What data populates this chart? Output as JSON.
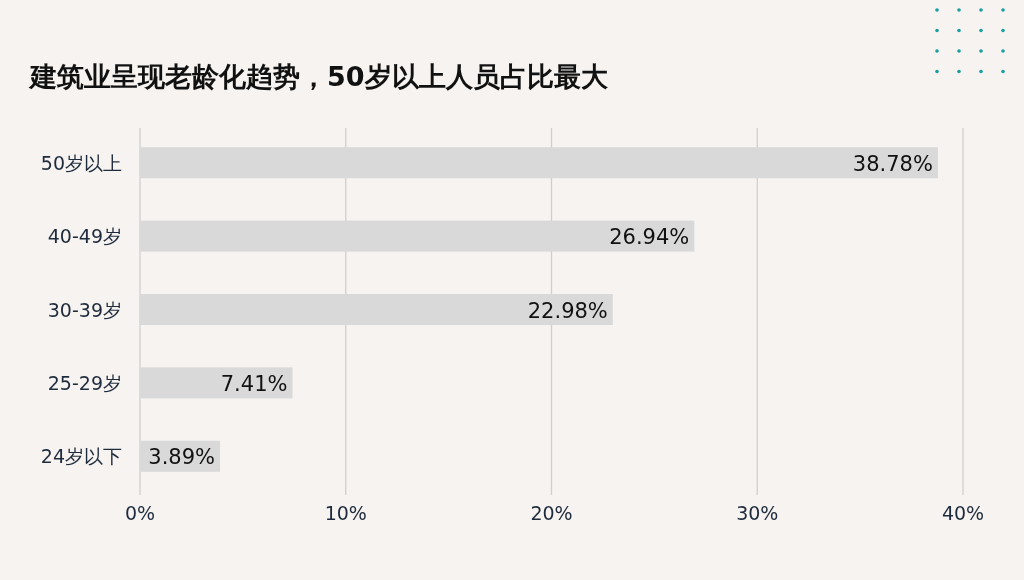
{
  "chart_data": {
    "type": "bar",
    "orientation": "horizontal",
    "title": "建筑业呈现老龄化趋势，50岁以上人员占比最大",
    "categories": [
      "50岁以上",
      "40-49岁",
      "30-39岁",
      "25-29岁",
      "24岁以下"
    ],
    "values": [
      38.78,
      26.94,
      22.98,
      7.41,
      3.89
    ],
    "value_labels": [
      "38.78%",
      "26.94%",
      "22.98%",
      "7.41%",
      "3.89%"
    ],
    "color": "#d9d9d9",
    "xlim": [
      0,
      40
    ],
    "xticks": [
      {
        "value": 0,
        "label": "0%"
      },
      {
        "value": 10,
        "label": "10%"
      },
      {
        "value": 20,
        "label": "20%"
      },
      {
        "value": 30,
        "label": "30%"
      },
      {
        "value": 40,
        "label": "40%"
      }
    ],
    "grid": "x"
  }
}
